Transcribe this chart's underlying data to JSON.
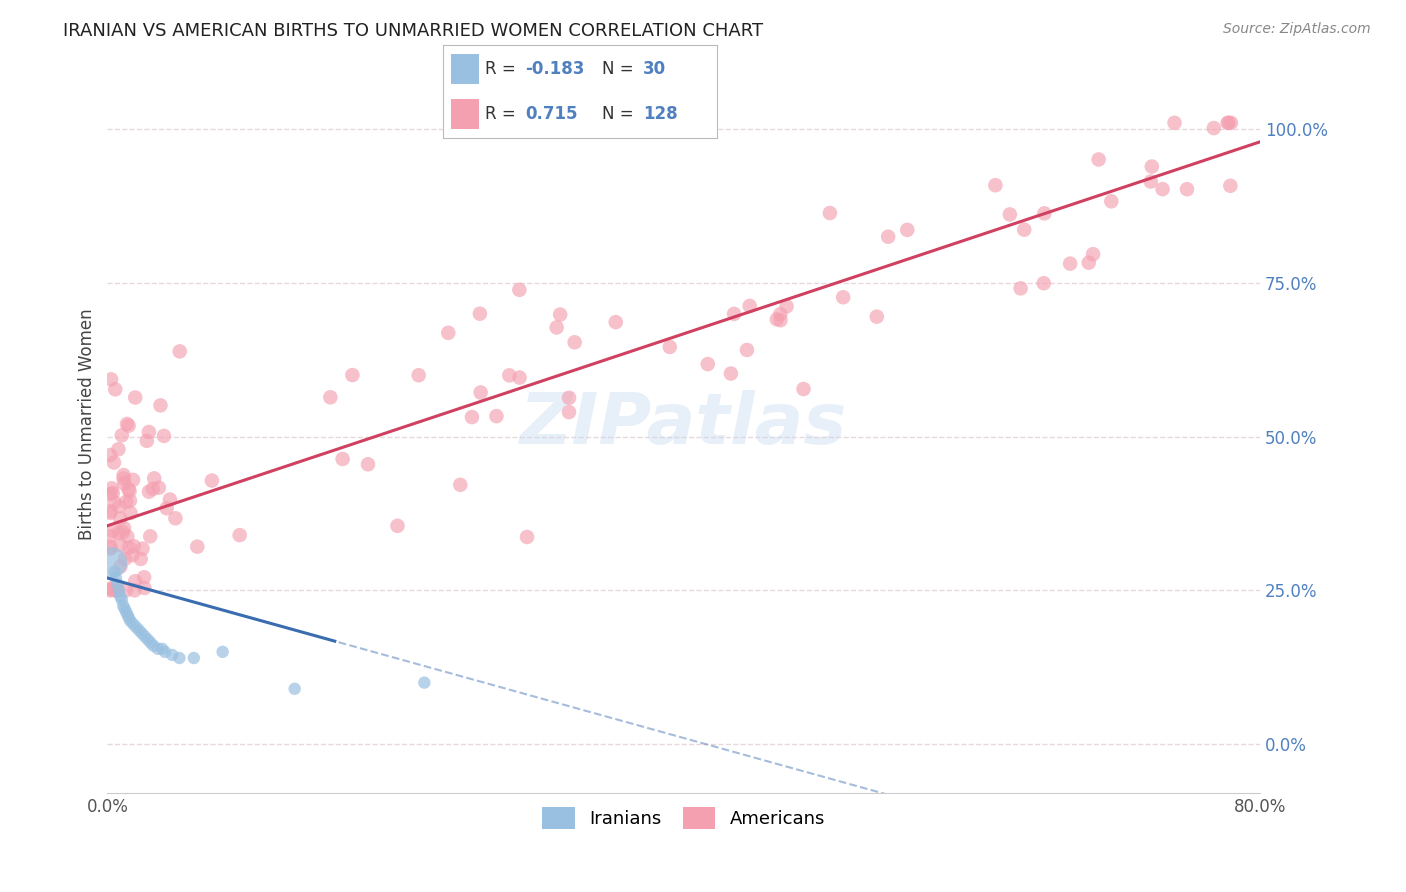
{
  "title": "IRANIAN VS AMERICAN BIRTHS TO UNMARRIED WOMEN CORRELATION CHART",
  "source": "Source: ZipAtlas.com",
  "ylabel": "Births to Unmarried Women",
  "xlim": [
    0.0,
    0.8
  ],
  "ylim": [
    -0.08,
    1.12
  ],
  "yticks_right": [
    0.0,
    0.25,
    0.5,
    0.75,
    1.0
  ],
  "ytick_labels_right": [
    "0.0%",
    "25.0%",
    "50.0%",
    "75.0%",
    "100.0%"
  ],
  "legend_blue_r": "-0.183",
  "legend_blue_n": "30",
  "legend_pink_r": "0.715",
  "legend_pink_n": "128",
  "color_blue_scatter": "#99C0E0",
  "color_pink_scatter": "#F4A0B0",
  "color_blue_line": "#3A6CB0",
  "color_pink_line": "#D04060",
  "color_blue_legend": "#99C0E0",
  "color_pink_legend": "#F4A0B0",
  "color_title": "#222222",
  "color_source": "#888888",
  "color_right_axis": "#5080C0",
  "color_watermark": "#C8DCF0",
  "color_watermark2": "#F0C8D4",
  "grid_color": "#E8D8DC",
  "background_color": "#FFFFFF",
  "blue_line_solid_end": 0.16,
  "blue_line_slope": -0.65,
  "blue_line_intercept": 0.27,
  "pink_line_slope": 0.78,
  "pink_line_intercept": 0.355
}
